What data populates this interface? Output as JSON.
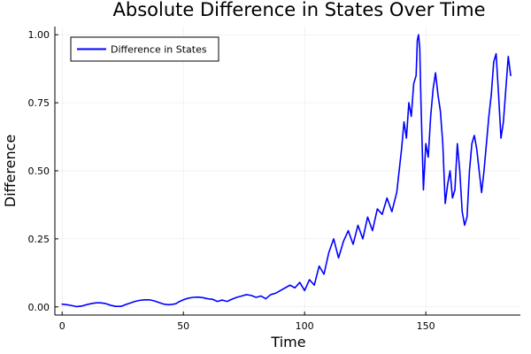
{
  "chart_data": {
    "type": "line",
    "title": "Absolute Difference in States Over Time",
    "xlabel": "Time",
    "ylabel": "Difference",
    "xlim": [
      -3,
      189
    ],
    "ylim": [
      -0.03,
      1.03
    ],
    "xticks": [
      0,
      50,
      100,
      150
    ],
    "xtick_labels": [
      "0",
      "50",
      "100",
      "150"
    ],
    "yticks": [
      0,
      0.25,
      0.5,
      0.75,
      1.0
    ],
    "ytick_labels": [
      "0.00",
      "0.25",
      "0.50",
      "0.75",
      "1.00"
    ],
    "grid": true,
    "legend_position": "top-left",
    "series": [
      {
        "name": "Difference in States",
        "color": "#0000ff",
        "x": [
          0,
          2,
          4,
          6,
          8,
          10,
          12,
          14,
          16,
          18,
          20,
          22,
          24,
          25,
          26,
          28,
          30,
          32,
          34,
          36,
          38,
          40,
          42,
          44,
          46,
          47,
          48,
          50,
          52,
          54,
          56,
          58,
          60,
          62,
          64,
          66,
          68,
          70,
          72,
          74,
          76,
          78,
          80,
          82,
          84,
          86,
          88,
          90,
          92,
          94,
          96,
          98,
          100,
          102,
          104,
          106,
          108,
          110,
          112,
          114,
          116,
          118,
          120,
          122,
          124,
          126,
          128,
          130,
          132,
          134,
          136,
          138,
          140,
          141,
          142,
          143,
          144,
          145,
          146,
          146.5,
          147,
          147.5,
          148,
          149,
          150,
          151,
          152,
          153,
          154,
          155,
          156,
          157,
          158,
          159,
          160,
          161,
          162,
          163,
          164,
          165,
          166,
          167,
          168,
          169,
          170,
          171,
          172,
          173,
          174,
          175,
          176,
          177,
          178,
          179,
          180,
          181,
          182,
          183,
          184,
          185
        ],
        "y": [
          0.01,
          0.008,
          0.005,
          0.001,
          0.003,
          0.008,
          0.012,
          0.015,
          0.015,
          0.012,
          0.006,
          0.002,
          0.002,
          0.004,
          0.008,
          0.014,
          0.02,
          0.024,
          0.026,
          0.026,
          0.022,
          0.016,
          0.01,
          0.008,
          0.01,
          0.012,
          0.018,
          0.026,
          0.032,
          0.035,
          0.036,
          0.034,
          0.03,
          0.028,
          0.02,
          0.025,
          0.02,
          0.028,
          0.035,
          0.04,
          0.045,
          0.042,
          0.035,
          0.04,
          0.03,
          0.045,
          0.05,
          0.06,
          0.07,
          0.08,
          0.07,
          0.09,
          0.06,
          0.1,
          0.08,
          0.15,
          0.12,
          0.2,
          0.25,
          0.18,
          0.24,
          0.28,
          0.23,
          0.3,
          0.25,
          0.33,
          0.28,
          0.36,
          0.34,
          0.4,
          0.35,
          0.42,
          0.58,
          0.68,
          0.62,
          0.75,
          0.7,
          0.82,
          0.85,
          0.98,
          1.0,
          0.95,
          0.75,
          0.43,
          0.6,
          0.55,
          0.7,
          0.8,
          0.86,
          0.78,
          0.72,
          0.6,
          0.38,
          0.45,
          0.5,
          0.4,
          0.43,
          0.6,
          0.5,
          0.35,
          0.3,
          0.33,
          0.5,
          0.6,
          0.63,
          0.58,
          0.5,
          0.42,
          0.5,
          0.6,
          0.7,
          0.78,
          0.9,
          0.93,
          0.78,
          0.62,
          0.68,
          0.8,
          0.92,
          0.85
        ]
      }
    ]
  }
}
